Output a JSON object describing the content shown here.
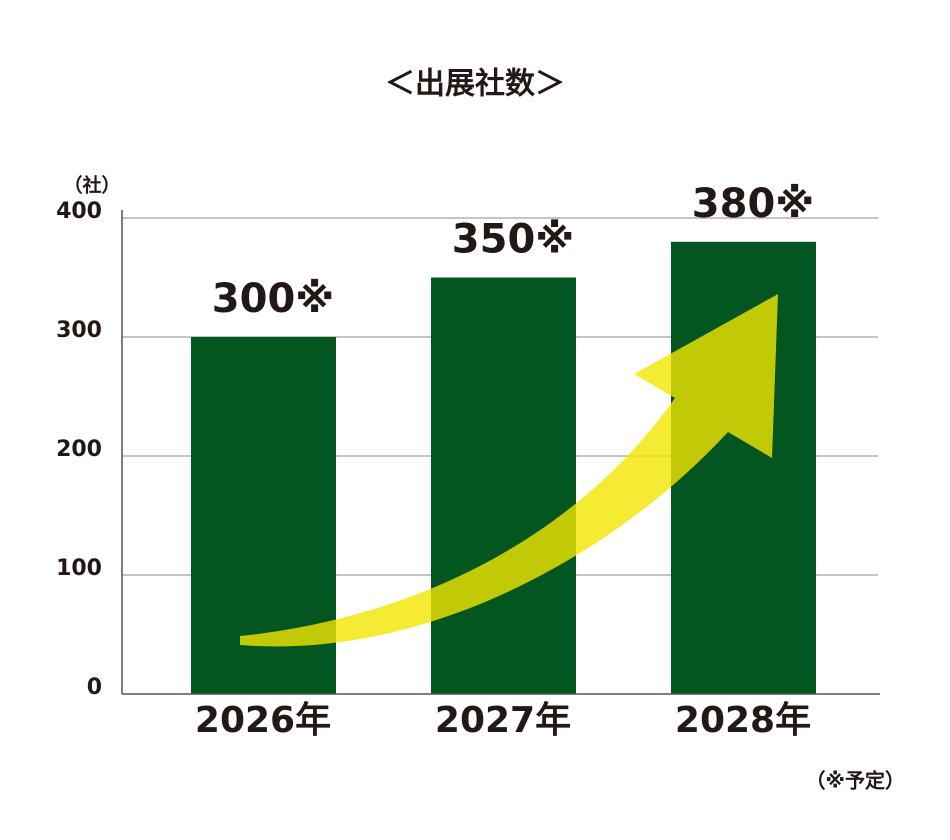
{
  "chart_data": {
    "type": "bar",
    "title": "＜出展社数＞",
    "y_label": "（社）",
    "categories": [
      "2026年",
      "2027年",
      "2028年"
    ],
    "values": [
      300,
      350,
      380
    ],
    "value_labels": [
      "300※",
      "350※",
      "380※"
    ],
    "color": "#03561f",
    "ylim": [
      0,
      400
    ],
    "yticks": [
      0,
      100,
      200,
      300,
      400
    ],
    "grid": true,
    "note": "（※予定）"
  }
}
